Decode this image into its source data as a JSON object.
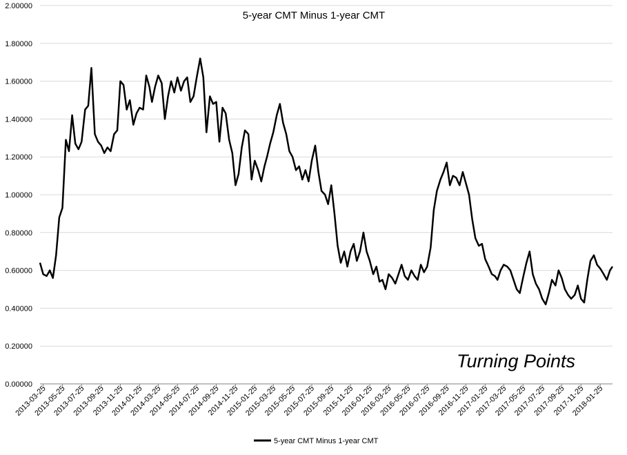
{
  "chart_data": {
    "type": "line",
    "title": "5-year CMT Minus 1-year CMT",
    "watermark": "Turning Points",
    "xlabel": "",
    "ylabel": "",
    "ylim": [
      0,
      2
    ],
    "y_ticks": [
      "0.00000",
      "0.20000",
      "0.40000",
      "0.60000",
      "0.80000",
      "1.00000",
      "1.20000",
      "1.40000",
      "1.60000",
      "1.80000",
      "2.00000"
    ],
    "x_ticks": [
      "2013-03-25",
      "2013-05-25",
      "2013-07-25",
      "2013-09-25",
      "2013-11-25",
      "2014-01-25",
      "2014-03-25",
      "2014-05-25",
      "2014-07-25",
      "2014-09-25",
      "2014-11-25",
      "2015-01-25",
      "2015-03-25",
      "2015-05-25",
      "2015-07-25",
      "2015-09-25",
      "2015-11-25",
      "2016-01-25",
      "2016-03-25",
      "2016-05-25",
      "2016-07-25",
      "2016-09-25",
      "2016-11-25",
      "2017-01-25",
      "2017-03-25",
      "2017-05-25",
      "2017-07-25",
      "2017-09-25",
      "2017-11-25",
      "2018-01-25"
    ],
    "grid": "horizontal",
    "legend_position": "bottom",
    "series": [
      {
        "name": "5-year CMT Minus 1-year CMT",
        "color": "#000000",
        "x": [
          "2013-03-15",
          "2013-03-25",
          "2013-04-05",
          "2013-04-15",
          "2013-04-25",
          "2013-05-05",
          "2013-05-15",
          "2013-05-25",
          "2013-06-05",
          "2013-06-15",
          "2013-06-25",
          "2013-07-05",
          "2013-07-15",
          "2013-07-25",
          "2013-08-05",
          "2013-08-15",
          "2013-08-25",
          "2013-09-05",
          "2013-09-15",
          "2013-09-25",
          "2013-10-05",
          "2013-10-15",
          "2013-10-25",
          "2013-11-05",
          "2013-11-15",
          "2013-11-25",
          "2013-12-05",
          "2013-12-15",
          "2013-12-25",
          "2014-01-05",
          "2014-01-15",
          "2014-01-25",
          "2014-02-05",
          "2014-02-15",
          "2014-02-25",
          "2014-03-05",
          "2014-03-15",
          "2014-03-25",
          "2014-04-05",
          "2014-04-15",
          "2014-04-25",
          "2014-05-05",
          "2014-05-15",
          "2014-05-25",
          "2014-06-05",
          "2014-06-15",
          "2014-06-25",
          "2014-07-05",
          "2014-07-15",
          "2014-07-25",
          "2014-08-05",
          "2014-08-15",
          "2014-08-25",
          "2014-09-05",
          "2014-09-15",
          "2014-09-25",
          "2014-10-05",
          "2014-10-15",
          "2014-10-25",
          "2014-11-05",
          "2014-11-15",
          "2014-11-25",
          "2014-12-05",
          "2014-12-15",
          "2014-12-25",
          "2015-01-05",
          "2015-01-15",
          "2015-01-25",
          "2015-02-05",
          "2015-02-15",
          "2015-02-25",
          "2015-03-05",
          "2015-03-15",
          "2015-03-25",
          "2015-04-05",
          "2015-04-15",
          "2015-04-25",
          "2015-05-05",
          "2015-05-15",
          "2015-05-25",
          "2015-06-05",
          "2015-06-15",
          "2015-06-25",
          "2015-07-05",
          "2015-07-15",
          "2015-07-25",
          "2015-08-05",
          "2015-08-15",
          "2015-08-25",
          "2015-09-05",
          "2015-09-15",
          "2015-09-25",
          "2015-10-05",
          "2015-10-15",
          "2015-10-25",
          "2015-11-05",
          "2015-11-15",
          "2015-11-25",
          "2015-12-05",
          "2015-12-15",
          "2015-12-25",
          "2016-01-05",
          "2016-01-15",
          "2016-01-25",
          "2016-02-05",
          "2016-02-15",
          "2016-02-25",
          "2016-03-05",
          "2016-03-15",
          "2016-03-25",
          "2016-04-05",
          "2016-04-15",
          "2016-04-25",
          "2016-05-05",
          "2016-05-15",
          "2016-05-25",
          "2016-06-05",
          "2016-06-15",
          "2016-06-25",
          "2016-07-05",
          "2016-07-15",
          "2016-07-25",
          "2016-08-05",
          "2016-08-15",
          "2016-08-25",
          "2016-09-05",
          "2016-09-15",
          "2016-09-25",
          "2016-10-05",
          "2016-10-15",
          "2016-10-25",
          "2016-11-05",
          "2016-11-15",
          "2016-11-25",
          "2016-12-05",
          "2016-12-15",
          "2016-12-25",
          "2017-01-05",
          "2017-01-15",
          "2017-01-25",
          "2017-02-05",
          "2017-02-15",
          "2017-02-25",
          "2017-03-05",
          "2017-03-15",
          "2017-03-25",
          "2017-04-05",
          "2017-04-15",
          "2017-04-25",
          "2017-05-05",
          "2017-05-15",
          "2017-05-25",
          "2017-06-05",
          "2017-06-15",
          "2017-06-25",
          "2017-07-05",
          "2017-07-15",
          "2017-07-25",
          "2017-08-05",
          "2017-08-15",
          "2017-08-25",
          "2017-09-05",
          "2017-09-15",
          "2017-09-25",
          "2017-10-05",
          "2017-10-15",
          "2017-10-25",
          "2017-11-05",
          "2017-11-15",
          "2017-11-25",
          "2017-12-05",
          "2017-12-15",
          "2017-12-25",
          "2018-01-05",
          "2018-01-15",
          "2018-01-25",
          "2018-02-05",
          "2018-02-15",
          "2018-02-25",
          "2018-03-05"
        ],
        "values": [
          0.64,
          0.58,
          0.57,
          0.6,
          0.56,
          0.68,
          0.88,
          0.93,
          1.29,
          1.23,
          1.42,
          1.27,
          1.24,
          1.28,
          1.45,
          1.47,
          1.67,
          1.32,
          1.28,
          1.26,
          1.22,
          1.25,
          1.23,
          1.32,
          1.34,
          1.6,
          1.58,
          1.45,
          1.5,
          1.37,
          1.43,
          1.46,
          1.45,
          1.63,
          1.57,
          1.49,
          1.57,
          1.63,
          1.59,
          1.4,
          1.52,
          1.6,
          1.54,
          1.62,
          1.55,
          1.6,
          1.62,
          1.49,
          1.52,
          1.62,
          1.72,
          1.62,
          1.33,
          1.52,
          1.48,
          1.49,
          1.28,
          1.46,
          1.43,
          1.29,
          1.22,
          1.05,
          1.11,
          1.25,
          1.34,
          1.32,
          1.08,
          1.18,
          1.13,
          1.07,
          1.15,
          1.2,
          1.27,
          1.33,
          1.42,
          1.48,
          1.38,
          1.32,
          1.23,
          1.2,
          1.13,
          1.15,
          1.08,
          1.13,
          1.07,
          1.18,
          1.26,
          1.12,
          1.02,
          1.0,
          0.95,
          1.05,
          0.9,
          0.73,
          0.64,
          0.7,
          0.62,
          0.7,
          0.74,
          0.65,
          0.7,
          0.8,
          0.7,
          0.65,
          0.58,
          0.62,
          0.54,
          0.55,
          0.5,
          0.58,
          0.56,
          0.53,
          0.58,
          0.63,
          0.57,
          0.55,
          0.6,
          0.57,
          0.55,
          0.63,
          0.59,
          0.62,
          0.72,
          0.92,
          1.02,
          1.08,
          1.12,
          1.17,
          1.05,
          1.1,
          1.09,
          1.05,
          1.12,
          1.06,
          1.0,
          0.87,
          0.77,
          0.73,
          0.74,
          0.66,
          0.62,
          0.58,
          0.57,
          0.55,
          0.6,
          0.63,
          0.62,
          0.6,
          0.55,
          0.5,
          0.48,
          0.56,
          0.64,
          0.7,
          0.58,
          0.53,
          0.5,
          0.45,
          0.42,
          0.48,
          0.55,
          0.52,
          0.6,
          0.56,
          0.5,
          0.47,
          0.45,
          0.47,
          0.52,
          0.45,
          0.43,
          0.55,
          0.65,
          0.68,
          0.63,
          0.61,
          0.58,
          0.55,
          0.6,
          0.62
        ]
      }
    ]
  }
}
